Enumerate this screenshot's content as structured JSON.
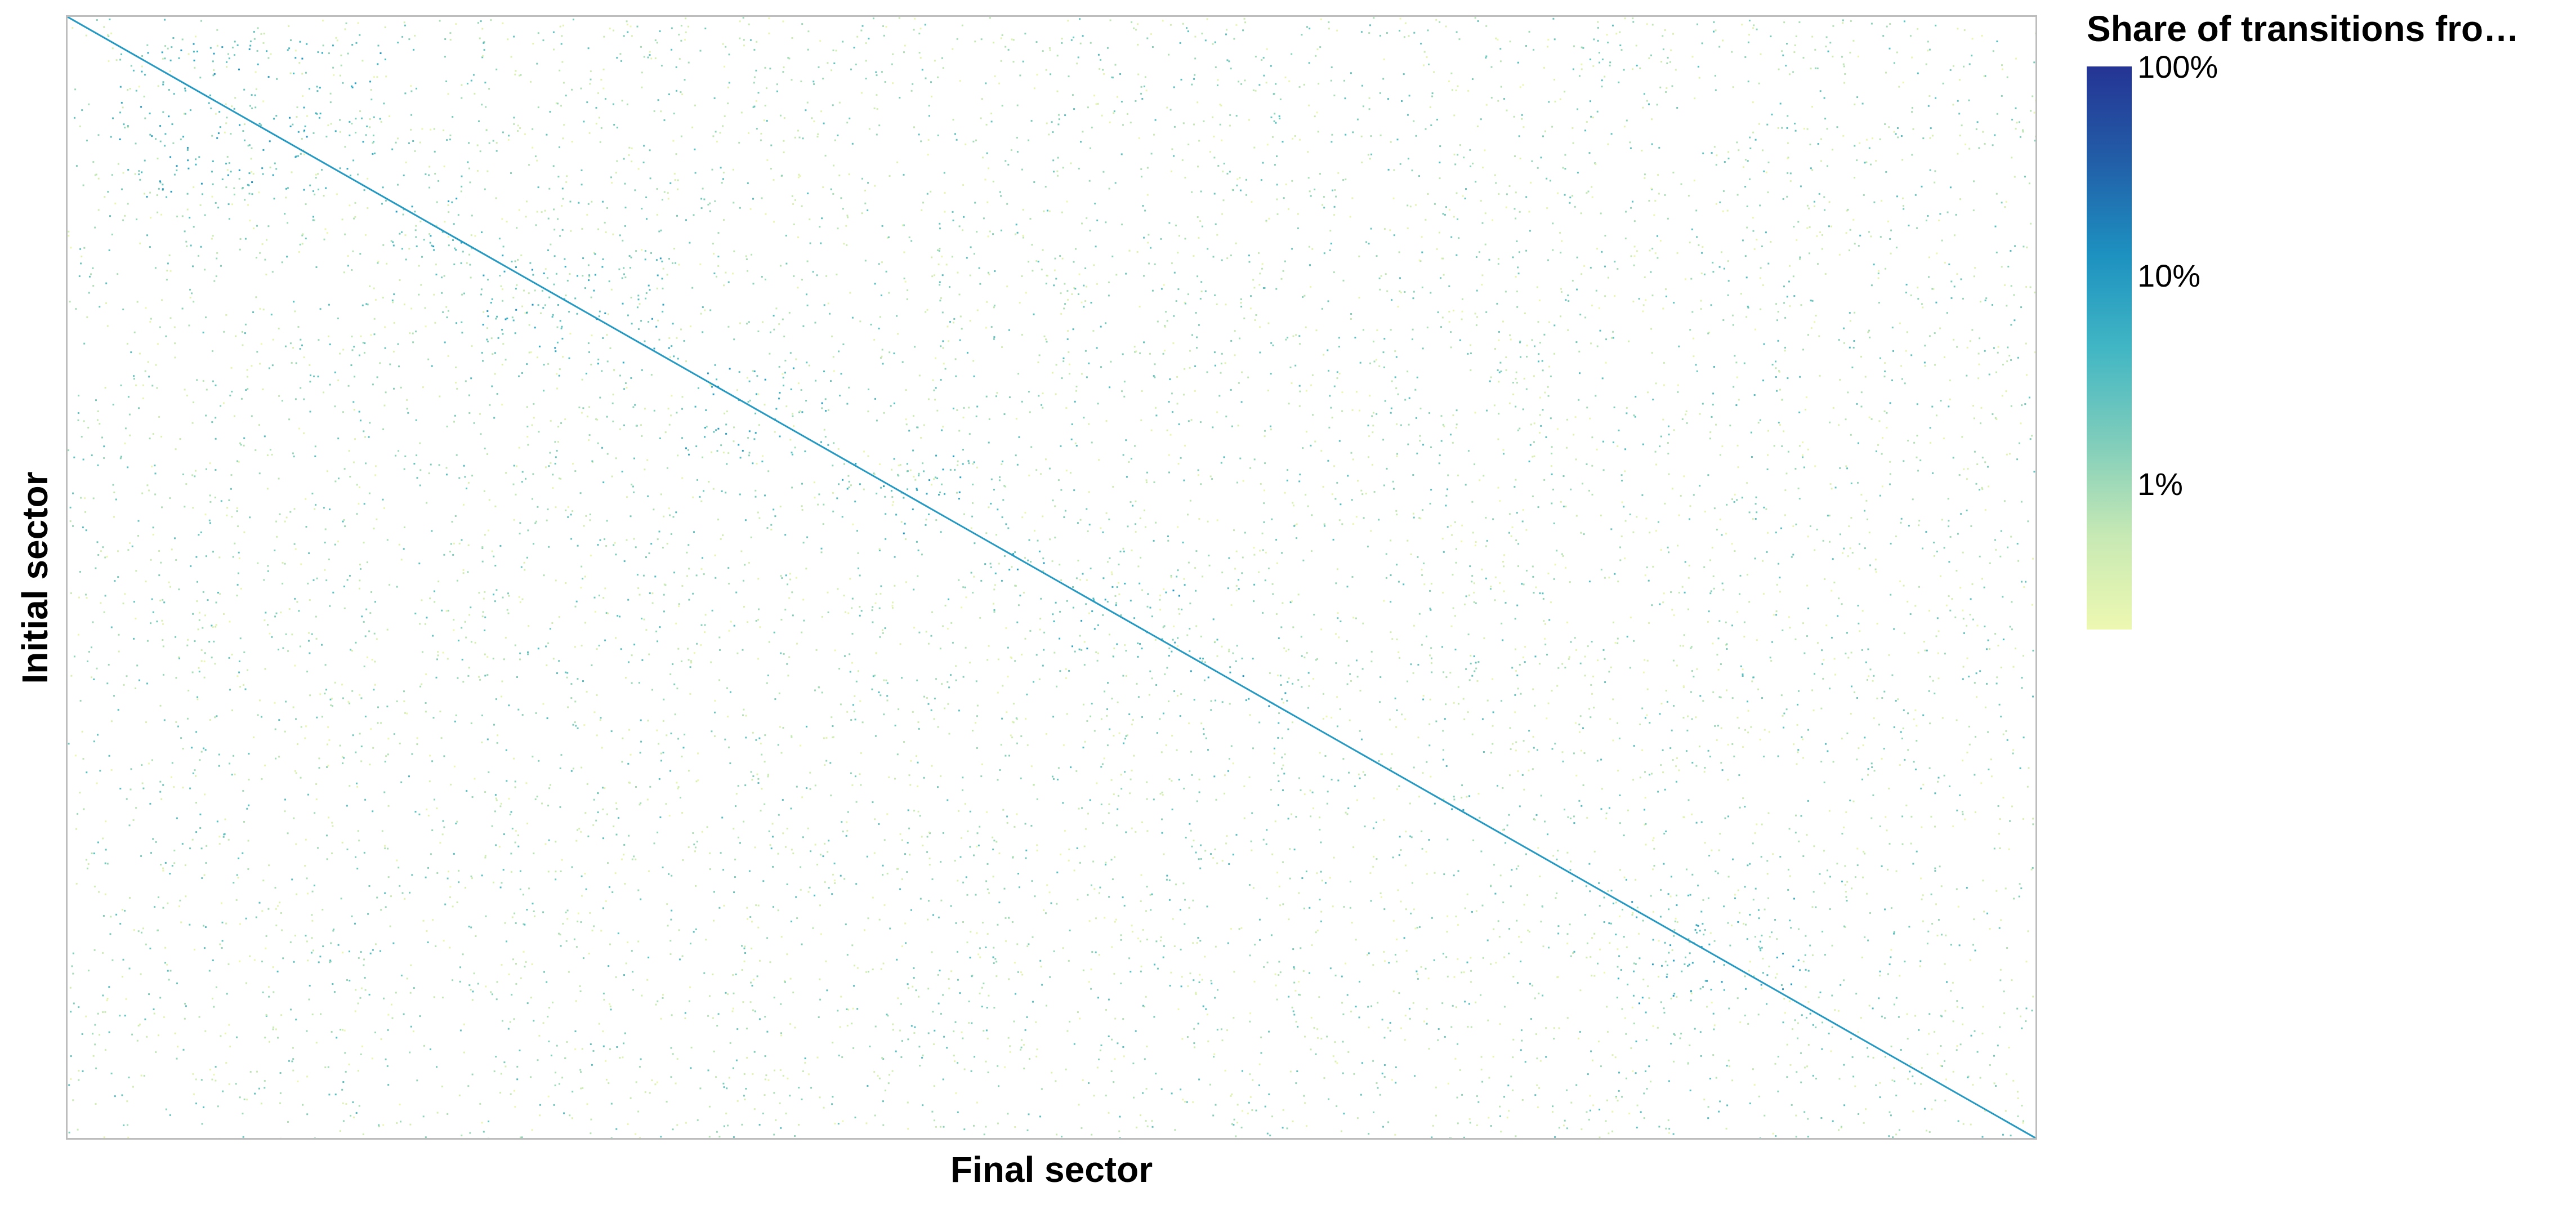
{
  "chart_data": {
    "type": "heatmap",
    "title": "",
    "xlabel": "Final sector",
    "ylabel": "Initial sector",
    "x_tick_labels": [],
    "y_tick_labels": [],
    "grid": false,
    "legend_placement": "right",
    "colorbar": {
      "title": "Share of transitions fro…",
      "scale": "log",
      "range_percent": [
        0.2,
        100
      ],
      "ticks": [
        {
          "value": 100,
          "label": "100%"
        },
        {
          "value": 10,
          "label": "10%"
        },
        {
          "value": 1,
          "label": "1%"
        }
      ],
      "colors": [
        "#edf8b1",
        "#c7e9b4",
        "#7fcdbb",
        "#41b6c4",
        "#1d91c0",
        "#225ea8",
        "#253494"
      ]
    },
    "diagonal": {
      "description_share_percent": 10,
      "dense_blocks_fraction": [
        [
          0.02,
          0.16
        ],
        [
          0.16,
          0.21
        ],
        [
          0.21,
          0.31
        ],
        [
          0.31,
          0.39
        ],
        [
          0.39,
          0.46
        ],
        [
          0.46,
          0.5
        ],
        [
          0.5,
          0.57
        ],
        [
          0.57,
          0.62
        ],
        [
          0.69,
          0.71
        ],
        [
          0.78,
          0.88
        ],
        [
          0.88,
          0.9
        ]
      ]
    }
  }
}
